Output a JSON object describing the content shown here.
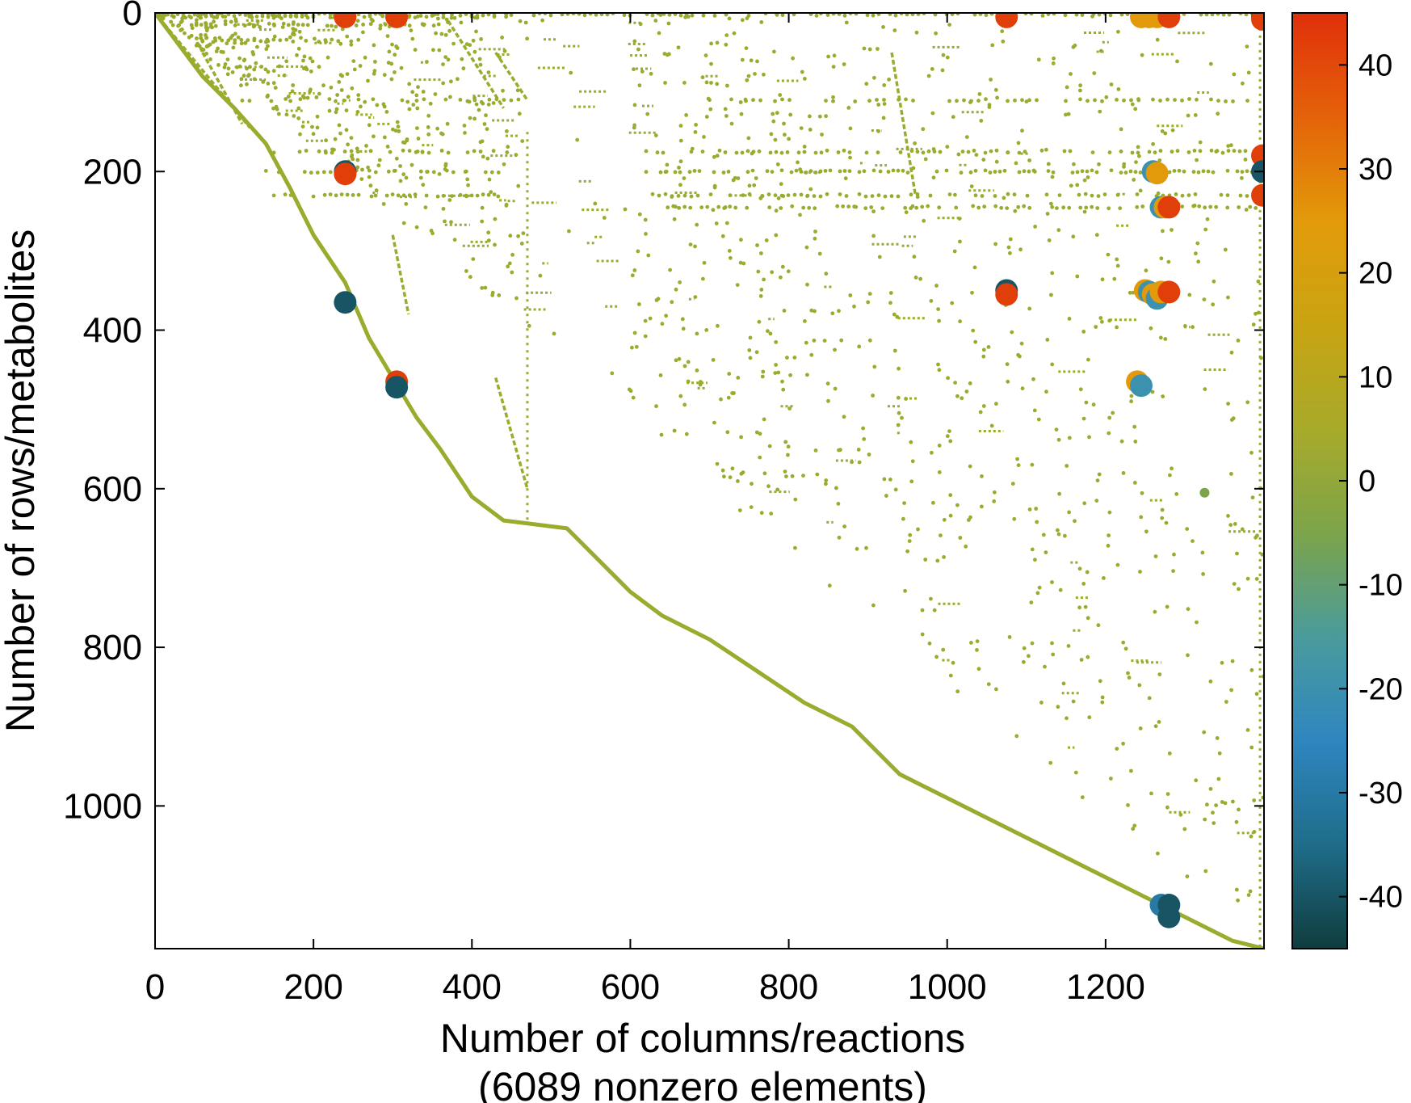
{
  "chart_data": {
    "type": "scatter",
    "title": "",
    "xlabel": "Number of columns/reactions",
    "xlabel_sub": "(6089 nonzero elements)",
    "ylabel": "Number of rows/metabolites",
    "xlim": [
      0,
      1400
    ],
    "ylim": [
      0,
      1180
    ],
    "y_inverted": true,
    "x_ticks": [
      "0",
      "200",
      "400",
      "600",
      "800",
      "1000",
      "1200"
    ],
    "x_tick_values": [
      0,
      200,
      400,
      600,
      800,
      1000,
      1200
    ],
    "y_ticks": [
      "0",
      "200",
      "400",
      "600",
      "800",
      "1000"
    ],
    "y_tick_values": [
      0,
      200,
      400,
      600,
      800,
      1000
    ],
    "grid": false,
    "colorbar": {
      "range": [
        -45,
        45
      ],
      "ticks": [
        "40",
        "30",
        "20",
        "10",
        "0",
        "-10",
        "-20",
        "-30",
        "-40"
      ],
      "tick_values": [
        40,
        30,
        20,
        10,
        0,
        -10,
        -20,
        -30,
        -40
      ],
      "colors": [
        "#0f3d3e",
        "#1f6d8a",
        "#2e86bf",
        "#4a9b9c",
        "#7ca44a",
        "#a8aa2a",
        "#c9a412",
        "#e29a0a",
        "#e4620a",
        "#e0300a"
      ]
    },
    "base_color": "#9aab2d",
    "diagonal": [
      [
        0,
        0
      ],
      [
        30,
        40
      ],
      [
        60,
        80
      ],
      [
        100,
        120
      ],
      [
        140,
        165
      ],
      [
        170,
        220
      ],
      [
        200,
        280
      ],
      [
        240,
        340
      ],
      [
        270,
        410
      ],
      [
        300,
        460
      ],
      [
        330,
        510
      ],
      [
        360,
        550
      ],
      [
        400,
        610
      ],
      [
        440,
        640
      ],
      [
        520,
        650
      ],
      [
        560,
        690
      ],
      [
        600,
        730
      ],
      [
        640,
        760
      ],
      [
        700,
        790
      ],
      [
        760,
        830
      ],
      [
        820,
        870
      ],
      [
        880,
        900
      ],
      [
        940,
        960
      ],
      [
        1000,
        990
      ],
      [
        1060,
        1020
      ],
      [
        1120,
        1050
      ],
      [
        1180,
        1080
      ],
      [
        1240,
        1110
      ],
      [
        1300,
        1140
      ],
      [
        1360,
        1170
      ],
      [
        1400,
        1180
      ]
    ],
    "bands": [
      {
        "y": 2,
        "x0": 0,
        "x1": 1400
      },
      {
        "y": 5,
        "x0": 0,
        "x1": 440
      },
      {
        "y": 15,
        "x0": 40,
        "x1": 390
      },
      {
        "y": 35,
        "x0": 60,
        "x1": 260
      },
      {
        "y": 110,
        "x0": 110,
        "x1": 460
      },
      {
        "y": 110,
        "x0": 700,
        "x1": 1380
      },
      {
        "y": 175,
        "x0": 150,
        "x1": 440
      },
      {
        "y": 175,
        "x0": 620,
        "x1": 1390
      },
      {
        "y": 200,
        "x0": 140,
        "x1": 440
      },
      {
        "y": 200,
        "x0": 620,
        "x1": 1390
      },
      {
        "y": 230,
        "x0": 150,
        "x1": 440
      },
      {
        "y": 230,
        "x0": 620,
        "x1": 1390
      },
      {
        "y": 245,
        "x0": 640,
        "x1": 1390
      }
    ],
    "segments": [
      [
        [
          0,
          0
        ],
        [
          120,
          145
        ]
      ],
      [
        [
          60,
          50
        ],
        [
          110,
          140
        ]
      ],
      [
        [
          430,
          50
        ],
        [
          470,
          110
        ]
      ],
      [
        [
          370,
          10
        ],
        [
          440,
          120
        ]
      ],
      [
        [
          930,
          50
        ],
        [
          960,
          230
        ]
      ],
      [
        [
          300,
          280
        ],
        [
          320,
          380
        ]
      ],
      [
        [
          430,
          460
        ],
        [
          470,
          600
        ]
      ]
    ],
    "vertical_lines": [
      {
        "x": 470,
        "y0": 150,
        "y1": 640
      },
      {
        "x": 1395,
        "y0": 10,
        "y1": 1180
      }
    ],
    "points": [
      {
        "x": 240,
        "y": 5,
        "v": 42
      },
      {
        "x": 305,
        "y": 5,
        "v": 42
      },
      {
        "x": 1075,
        "y": 5,
        "v": 42
      },
      {
        "x": 1245,
        "y": 5,
        "v": 25
      },
      {
        "x": 1255,
        "y": 5,
        "v": 25
      },
      {
        "x": 1265,
        "y": 5,
        "v": 25
      },
      {
        "x": 1280,
        "y": 5,
        "v": 42
      },
      {
        "x": 1398,
        "y": 5,
        "v": -40
      },
      {
        "x": 1398,
        "y": 8,
        "v": 42
      },
      {
        "x": 1398,
        "y": 180,
        "v": 42
      },
      {
        "x": 240,
        "y": 200,
        "v": -40
      },
      {
        "x": 240,
        "y": 203,
        "v": 42
      },
      {
        "x": 1260,
        "y": 200,
        "v": -20
      },
      {
        "x": 1265,
        "y": 202,
        "v": 25
      },
      {
        "x": 1398,
        "y": 200,
        "v": -40
      },
      {
        "x": 1398,
        "y": 230,
        "v": 42
      },
      {
        "x": 1270,
        "y": 245,
        "v": -20
      },
      {
        "x": 1275,
        "y": 245,
        "v": 25
      },
      {
        "x": 1280,
        "y": 245,
        "v": 42
      },
      {
        "x": 240,
        "y": 365,
        "v": -40
      },
      {
        "x": 1075,
        "y": 350,
        "v": -40
      },
      {
        "x": 1075,
        "y": 355,
        "v": 42
      },
      {
        "x": 1250,
        "y": 350,
        "v": 25
      },
      {
        "x": 1255,
        "y": 352,
        "v": -20
      },
      {
        "x": 1260,
        "y": 355,
        "v": 25
      },
      {
        "x": 1265,
        "y": 360,
        "v": -20
      },
      {
        "x": 1270,
        "y": 352,
        "v": 25
      },
      {
        "x": 1280,
        "y": 352,
        "v": 42
      },
      {
        "x": 305,
        "y": 465,
        "v": 42
      },
      {
        "x": 305,
        "y": 472,
        "v": -40
      },
      {
        "x": 1240,
        "y": 465,
        "v": 25
      },
      {
        "x": 1245,
        "y": 470,
        "v": -20
      },
      {
        "x": 1325,
        "y": 605,
        "v": -5
      },
      {
        "x": 1270,
        "y": 1125,
        "v": -30
      },
      {
        "x": 1280,
        "y": 1140,
        "v": -40
      },
      {
        "x": 1280,
        "y": 1125,
        "v": -40
      }
    ]
  }
}
